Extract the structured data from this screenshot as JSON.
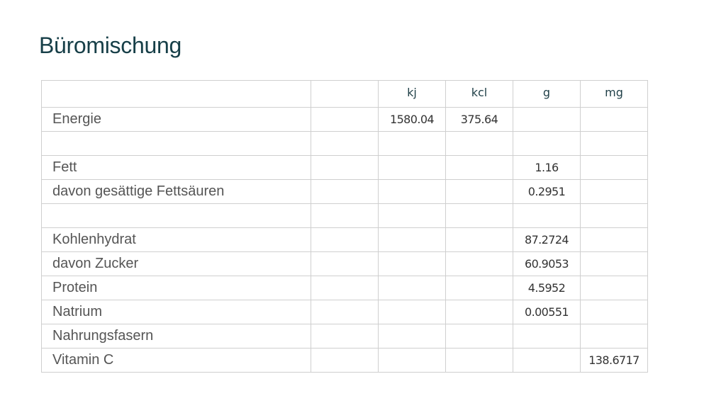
{
  "title": "Büromischung",
  "colors": {
    "title": "#173f48",
    "header": "#1f3f47",
    "border": "#cfcfcf"
  },
  "table": {
    "columns": [
      "",
      "",
      "kj",
      "kcl",
      "g",
      "mg"
    ],
    "rows": [
      {
        "label": "Energie",
        "cells": [
          "",
          "1580.04",
          "375.64",
          "",
          ""
        ]
      },
      {
        "label": "",
        "cells": [
          "",
          "",
          "",
          "",
          ""
        ]
      },
      {
        "label": "Fett",
        "cells": [
          "",
          "",
          "",
          "1.16",
          ""
        ]
      },
      {
        "label": "davon gesättige Fettsäuren",
        "cells": [
          "",
          "",
          "",
          "0.2951",
          ""
        ]
      },
      {
        "label": "",
        "cells": [
          "",
          "",
          "",
          "",
          ""
        ]
      },
      {
        "label": "Kohlenhydrat",
        "cells": [
          "",
          "",
          "",
          "87.2724",
          ""
        ]
      },
      {
        "label": "davon Zucker",
        "cells": [
          "",
          "",
          "",
          "60.9053",
          ""
        ]
      },
      {
        "label": "Protein",
        "cells": [
          "",
          "",
          "",
          "4.5952",
          ""
        ]
      },
      {
        "label": "Natrium",
        "cells": [
          "",
          "",
          "",
          "0.00551",
          ""
        ]
      },
      {
        "label": "Nahrungsfasern",
        "cells": [
          "",
          "",
          "",
          "",
          ""
        ]
      },
      {
        "label": "Vitamin C",
        "cells": [
          "",
          "",
          "",
          "",
          "138.6717"
        ]
      }
    ]
  }
}
